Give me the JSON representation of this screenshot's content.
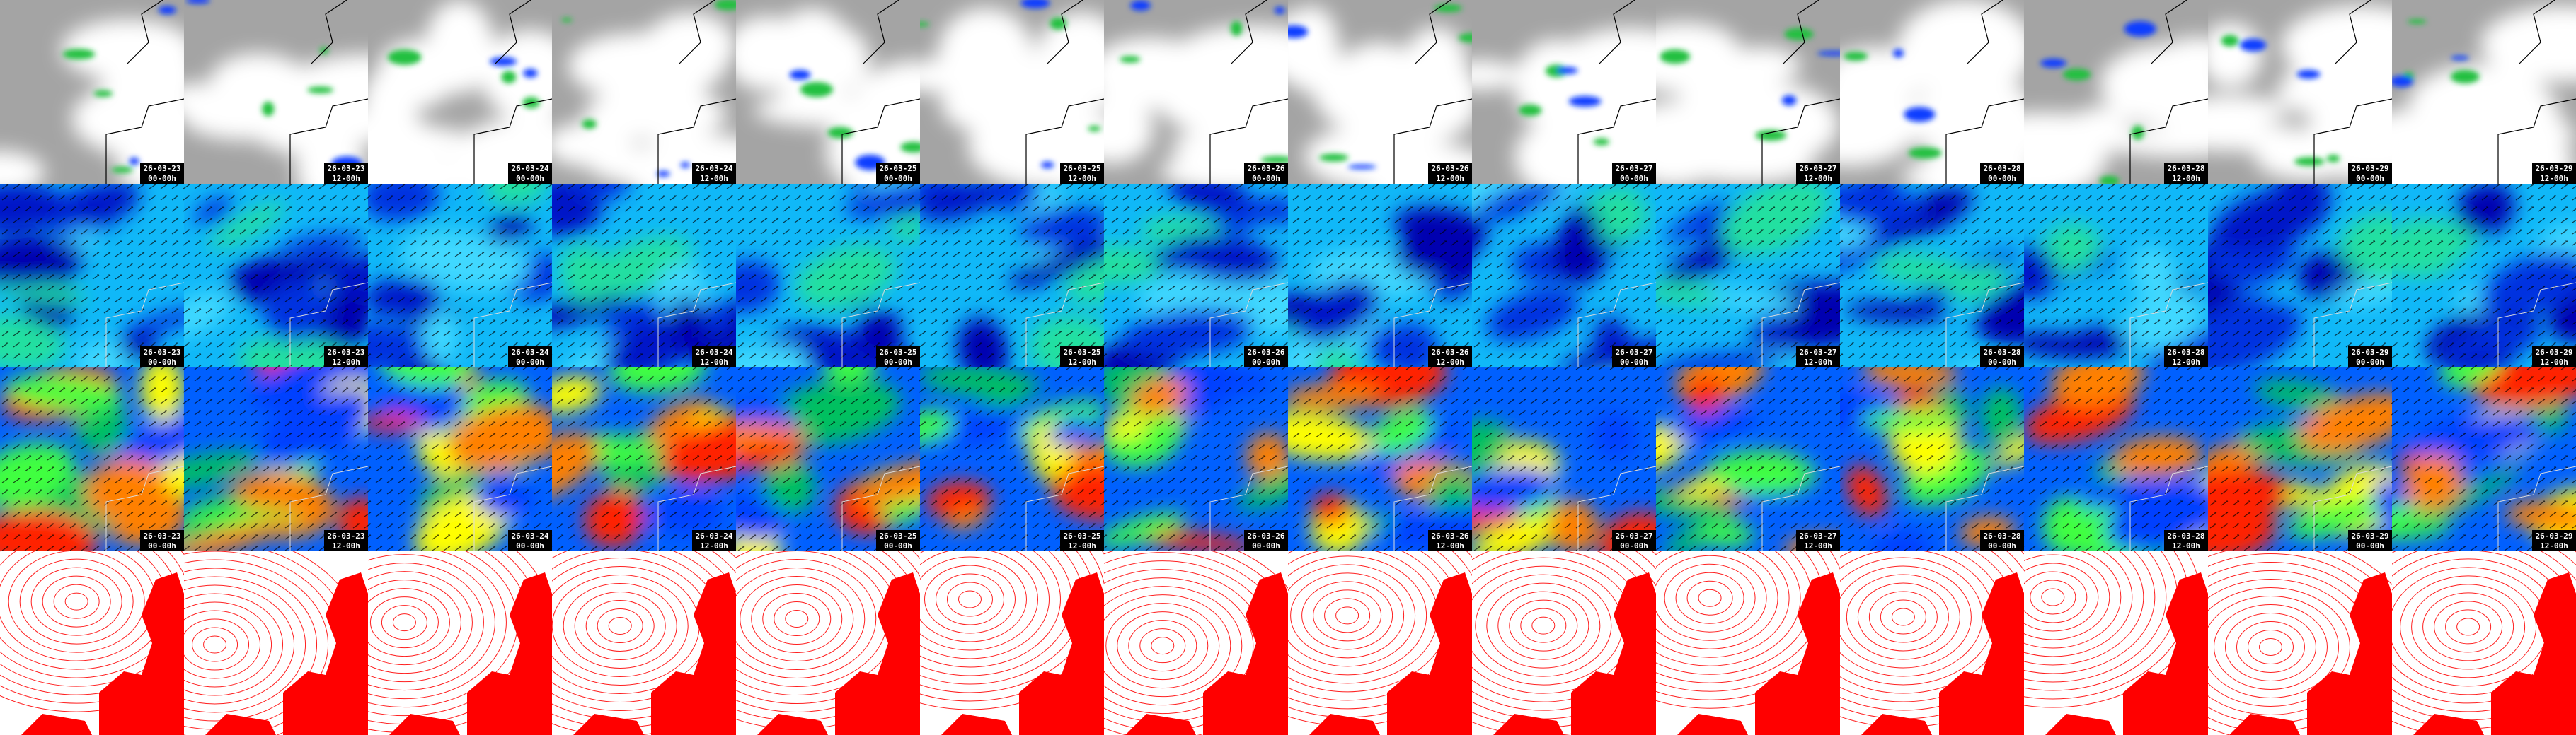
{
  "columns": [
    {
      "date": "26-03-23",
      "time": "00-00h"
    },
    {
      "date": "26-03-23",
      "time": "12-00h"
    },
    {
      "date": "26-03-24",
      "time": "00-00h"
    },
    {
      "date": "26-03-24",
      "time": "12-00h"
    },
    {
      "date": "26-03-25",
      "time": "00-00h"
    },
    {
      "date": "26-03-25",
      "time": "12-00h"
    },
    {
      "date": "26-03-26",
      "time": "00-00h"
    },
    {
      "date": "26-03-26",
      "time": "12-00h"
    },
    {
      "date": "26-03-27",
      "time": "00-00h"
    },
    {
      "date": "26-03-27",
      "time": "12-00h"
    },
    {
      "date": "26-03-28",
      "time": "00-00h"
    },
    {
      "date": "26-03-28",
      "time": "12-00h"
    },
    {
      "date": "26-03-29",
      "time": "00-00h"
    },
    {
      "date": "26-03-29",
      "time": "12-00h"
    }
  ]
}
